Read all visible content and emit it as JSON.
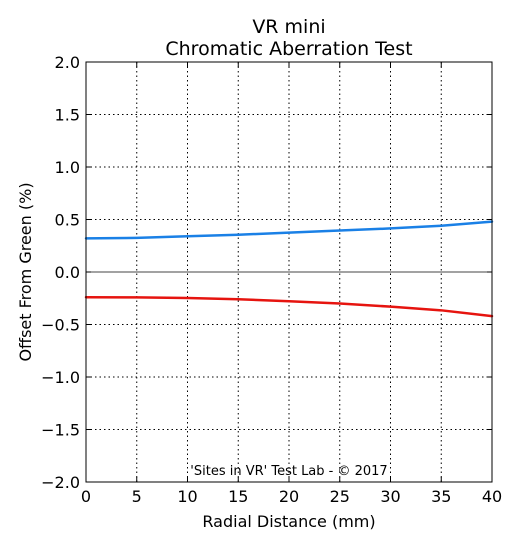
{
  "chart_data": {
    "type": "line",
    "title": [
      "VR mini",
      "Chromatic Aberration Test"
    ],
    "xlabel": "Radial Distance (mm)",
    "ylabel": "Offset From Green (%)",
    "xlim": [
      0,
      40
    ],
    "ylim": [
      -2.0,
      2.0
    ],
    "xticks": [
      0,
      5,
      10,
      15,
      20,
      25,
      30,
      35,
      40
    ],
    "xtick_labels": [
      "0",
      "5",
      "10",
      "15",
      "20",
      "25",
      "30",
      "35",
      "40"
    ],
    "yticks": [
      2.0,
      1.5,
      1.0,
      0.5,
      0.0,
      -0.5,
      -1.0,
      -1.5,
      -2.0
    ],
    "ytick_labels": [
      "2.0",
      "1.5",
      "1.0",
      "0.5",
      "0.0",
      "−0.5",
      "−1.0",
      "−1.5",
      "−2.0"
    ],
    "grid": true,
    "zero_line": true,
    "annotation": "'Sites in VR' Test Lab - © 2017",
    "series": [
      {
        "color": "#1a80e6",
        "x": [
          0,
          5,
          10,
          15,
          20,
          25,
          30,
          35,
          40
        ],
        "y": [
          0.32,
          0.325,
          0.34,
          0.355,
          0.375,
          0.395,
          0.415,
          0.44,
          0.48
        ]
      },
      {
        "color": "#e6140f",
        "x": [
          0,
          5,
          10,
          15,
          20,
          25,
          30,
          35,
          40
        ],
        "y": [
          -0.24,
          -0.242,
          -0.248,
          -0.26,
          -0.278,
          -0.3,
          -0.33,
          -0.365,
          -0.42
        ]
      }
    ]
  }
}
